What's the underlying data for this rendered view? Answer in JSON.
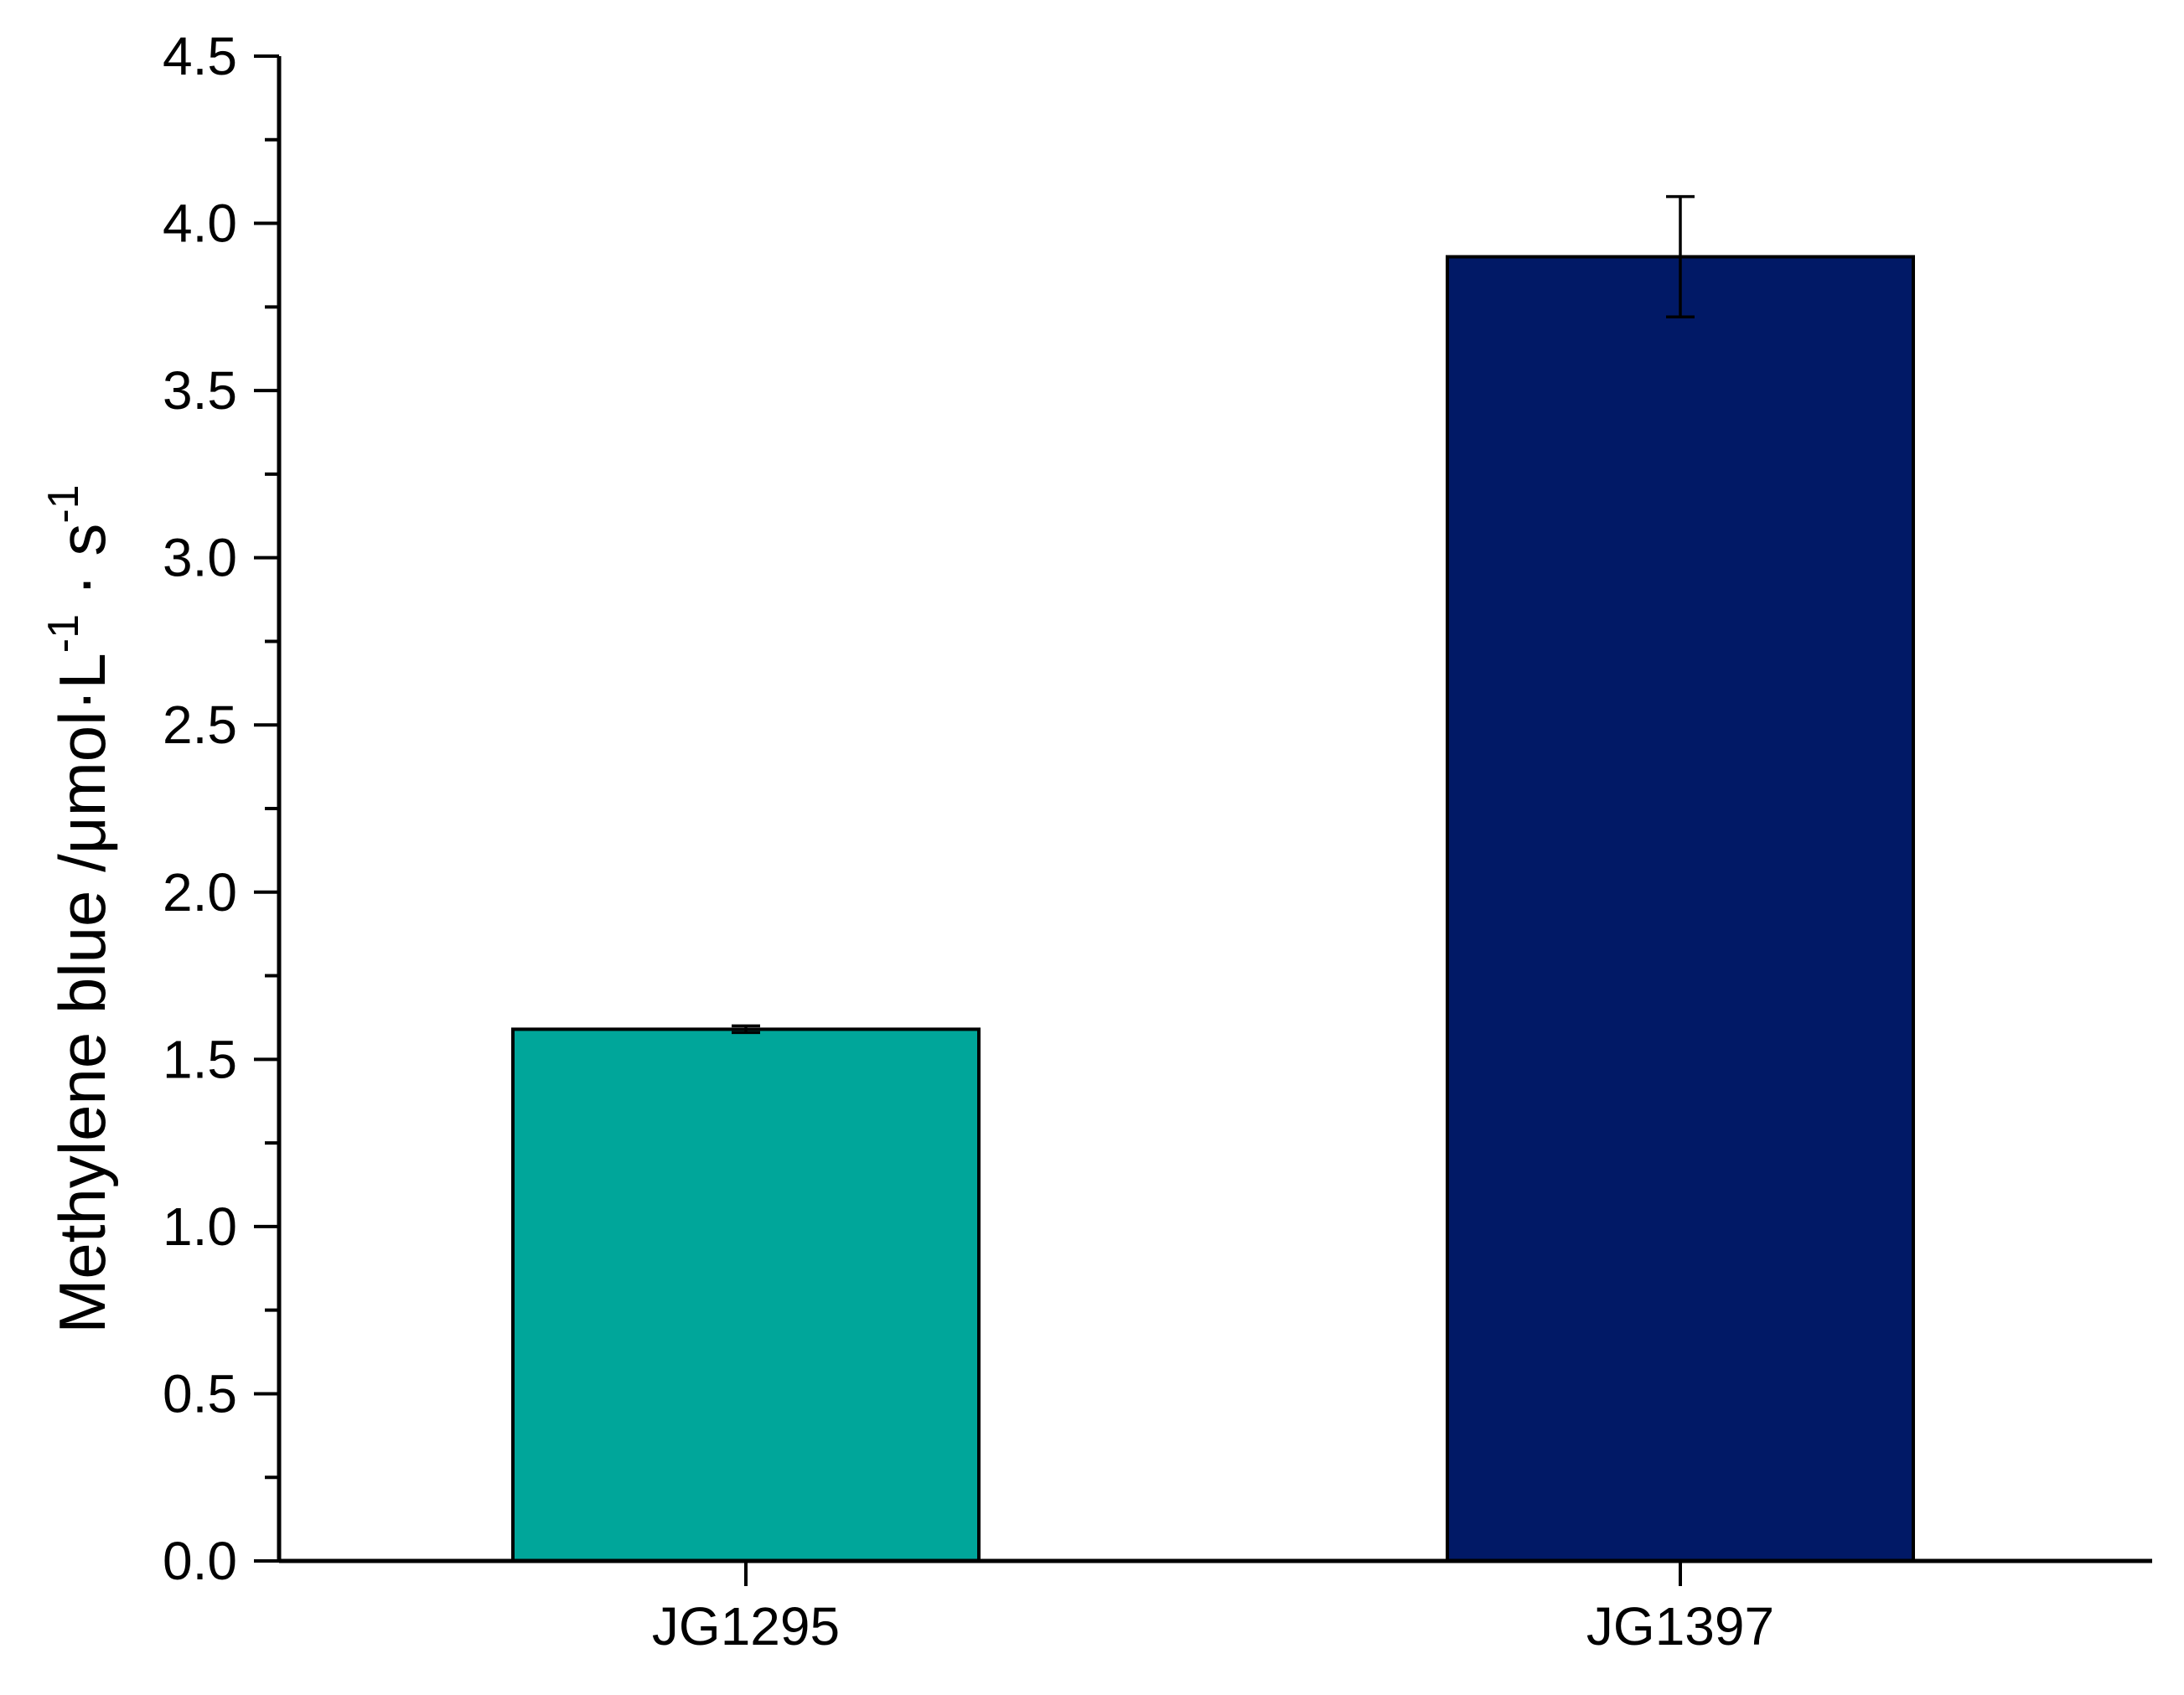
{
  "chart_data": {
    "type": "bar",
    "categories": [
      "JG1295",
      "JG1397"
    ],
    "values": [
      1.59,
      3.9
    ],
    "errors": [
      0.01,
      0.18
    ],
    "colors": [
      "#00A69A",
      "#011966"
    ],
    "ylim": [
      0,
      4.5
    ],
    "yticks": [
      0.0,
      0.5,
      1.0,
      1.5,
      2.0,
      2.5,
      3.0,
      3.5,
      4.0,
      4.5
    ],
    "ytick_labels": [
      "0.0",
      "0.5",
      "1.0",
      "1.5",
      "2.0",
      "2.5",
      "3.0",
      "3.5",
      "4.0",
      "4.5"
    ],
    "ylabel": {
      "main": "Methylene blue /μmol·L",
      "exp1": "-1",
      "mid": " · s",
      "exp2": "-1"
    },
    "xlabel": "",
    "grid": false,
    "legend": "none"
  }
}
